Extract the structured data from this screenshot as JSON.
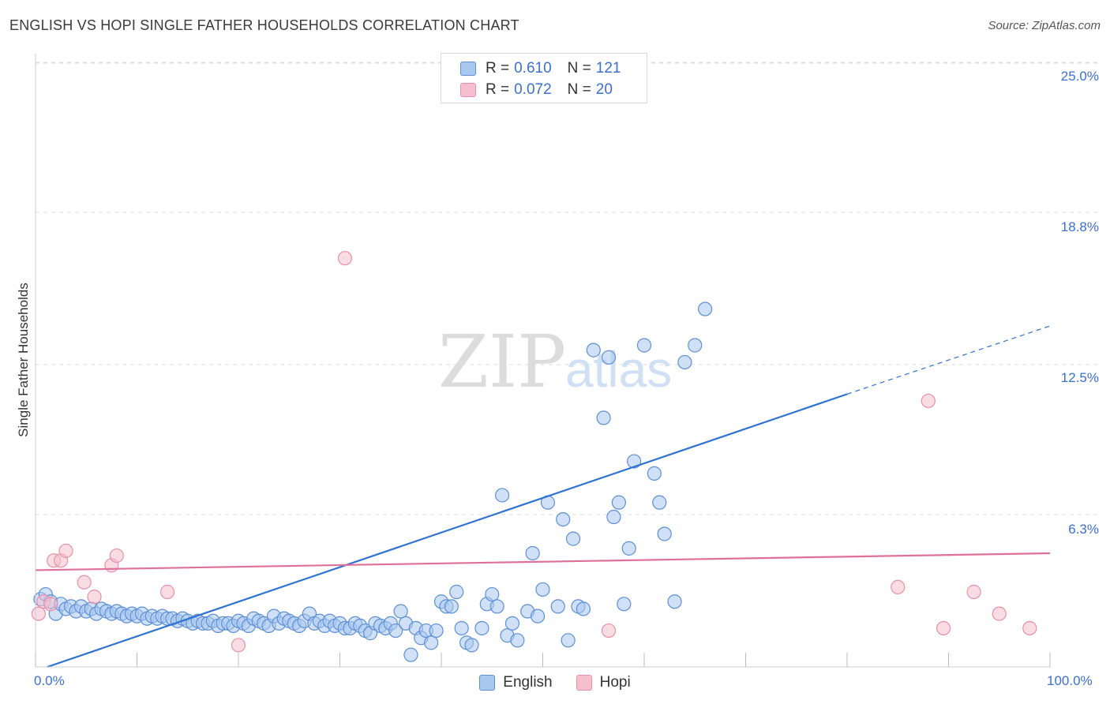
{
  "header": {
    "title": "ENGLISH VS HOPI SINGLE FATHER HOUSEHOLDS CORRELATION CHART",
    "source": "Source: ZipAtlas.com"
  },
  "watermark": {
    "zip": "ZIP",
    "atlas": "atlas"
  },
  "colors": {
    "english_fill": "#a9c8f0",
    "english_stroke": "#5d8fd6",
    "english_line": "#2e72d2",
    "hopi_fill": "#f6bfd0",
    "hopi_stroke": "#e88fab",
    "hopi_line": "#e0709a",
    "tick_text": "#3b6fd0",
    "grid": "#dddddd"
  },
  "legend": {
    "rows": [
      {
        "series": "English",
        "r_label": "R =",
        "r_value": "0.610",
        "n_label": "N =",
        "n_value": "121"
      },
      {
        "series": "Hopi",
        "r_label": "R =",
        "r_value": "0.072",
        "n_label": "N =",
        "n_value": "20"
      }
    ]
  },
  "chart_data": {
    "type": "scatter",
    "title": "ENGLISH VS HOPI SINGLE FATHER HOUSEHOLDS CORRELATION CHART",
    "xlabel": "",
    "ylabel": "Single Father Households",
    "xlim": [
      0,
      100
    ],
    "ylim": [
      0,
      25
    ],
    "x_tick_labels": [
      "0.0%",
      "100.0%"
    ],
    "y_ticks": [
      6.3,
      12.5,
      18.8,
      25.0
    ],
    "y_tick_labels": [
      "6.3%",
      "12.5%",
      "18.8%",
      "25.0%"
    ],
    "grid": true,
    "legend_position": "top-center",
    "series": [
      {
        "name": "English",
        "r": 0.61,
        "n": 121,
        "trend": {
          "x0": 0,
          "y0": 0.0,
          "x1": 100,
          "y1": 14.1,
          "solid_until_x": 80
        },
        "points": [
          [
            0.5,
            2.8
          ],
          [
            1,
            3.0
          ],
          [
            1.5,
            2.7
          ],
          [
            2,
            2.2
          ],
          [
            2.5,
            2.6
          ],
          [
            3,
            2.4
          ],
          [
            3.5,
            2.5
          ],
          [
            4,
            2.3
          ],
          [
            4.5,
            2.5
          ],
          [
            5,
            2.3
          ],
          [
            5.5,
            2.4
          ],
          [
            6,
            2.2
          ],
          [
            6.5,
            2.4
          ],
          [
            7,
            2.3
          ],
          [
            7.5,
            2.2
          ],
          [
            8,
            2.3
          ],
          [
            8.5,
            2.2
          ],
          [
            9,
            2.1
          ],
          [
            9.5,
            2.2
          ],
          [
            10,
            2.1
          ],
          [
            10.5,
            2.2
          ],
          [
            11,
            2.0
          ],
          [
            11.5,
            2.1
          ],
          [
            12,
            2.0
          ],
          [
            12.5,
            2.1
          ],
          [
            13,
            2.0
          ],
          [
            13.5,
            2.0
          ],
          [
            14,
            1.9
          ],
          [
            14.5,
            2.0
          ],
          [
            15,
            1.9
          ],
          [
            15.5,
            1.8
          ],
          [
            16,
            1.9
          ],
          [
            16.5,
            1.8
          ],
          [
            17,
            1.8
          ],
          [
            17.5,
            1.9
          ],
          [
            18,
            1.7
          ],
          [
            18.5,
            1.8
          ],
          [
            19,
            1.8
          ],
          [
            19.5,
            1.7
          ],
          [
            20,
            1.9
          ],
          [
            20.5,
            1.8
          ],
          [
            21,
            1.7
          ],
          [
            21.5,
            2.0
          ],
          [
            22,
            1.9
          ],
          [
            22.5,
            1.8
          ],
          [
            23,
            1.7
          ],
          [
            23.5,
            2.1
          ],
          [
            24,
            1.8
          ],
          [
            24.5,
            2.0
          ],
          [
            25,
            1.9
          ],
          [
            25.5,
            1.8
          ],
          [
            26,
            1.7
          ],
          [
            26.5,
            1.9
          ],
          [
            27,
            2.2
          ],
          [
            27.5,
            1.8
          ],
          [
            28,
            1.9
          ],
          [
            28.5,
            1.7
          ],
          [
            29,
            1.9
          ],
          [
            29.5,
            1.7
          ],
          [
            30,
            1.8
          ],
          [
            30.5,
            1.6
          ],
          [
            31,
            1.6
          ],
          [
            31.5,
            1.8
          ],
          [
            32,
            1.7
          ],
          [
            32.5,
            1.5
          ],
          [
            33,
            1.4
          ],
          [
            33.5,
            1.8
          ],
          [
            34,
            1.7
          ],
          [
            34.5,
            1.6
          ],
          [
            35,
            1.8
          ],
          [
            35.5,
            1.5
          ],
          [
            36,
            2.3
          ],
          [
            36.5,
            1.8
          ],
          [
            37,
            0.5
          ],
          [
            37.5,
            1.6
          ],
          [
            38,
            1.2
          ],
          [
            38.5,
            1.5
          ],
          [
            39,
            1.0
          ],
          [
            39.5,
            1.5
          ],
          [
            40,
            2.7
          ],
          [
            40.5,
            2.5
          ],
          [
            41,
            2.5
          ],
          [
            41.5,
            3.1
          ],
          [
            42,
            1.6
          ],
          [
            42.5,
            1.0
          ],
          [
            43,
            0.9
          ],
          [
            44,
            1.6
          ],
          [
            44.5,
            2.6
          ],
          [
            45,
            3.0
          ],
          [
            45.5,
            2.5
          ],
          [
            46,
            7.1
          ],
          [
            46.5,
            1.3
          ],
          [
            47,
            1.8
          ],
          [
            47.5,
            1.1
          ],
          [
            48.5,
            2.3
          ],
          [
            49,
            4.7
          ],
          [
            49.5,
            2.1
          ],
          [
            50,
            3.2
          ],
          [
            50.5,
            6.8
          ],
          [
            51.5,
            2.5
          ],
          [
            52,
            6.1
          ],
          [
            52.5,
            1.1
          ],
          [
            53,
            5.3
          ],
          [
            53.5,
            2.5
          ],
          [
            54,
            2.4
          ],
          [
            55,
            13.1
          ],
          [
            56,
            10.3
          ],
          [
            56.5,
            12.8
          ],
          [
            57,
            6.2
          ],
          [
            57.5,
            6.8
          ],
          [
            58,
            2.6
          ],
          [
            58.5,
            4.9
          ],
          [
            59,
            8.5
          ],
          [
            60,
            13.3
          ],
          [
            61,
            8.0
          ],
          [
            61.5,
            6.8
          ],
          [
            62,
            5.5
          ],
          [
            63,
            2.7
          ],
          [
            64,
            12.6
          ],
          [
            65,
            13.3
          ],
          [
            66,
            14.8
          ]
        ]
      },
      {
        "name": "Hopi",
        "r": 0.072,
        "n": 20,
        "trend": {
          "x0": 0,
          "y0": 4.0,
          "x1": 100,
          "y1": 4.7
        },
        "points": [
          [
            0.3,
            2.2
          ],
          [
            0.8,
            2.7
          ],
          [
            1.5,
            2.6
          ],
          [
            1.8,
            4.4
          ],
          [
            2.5,
            4.4
          ],
          [
            3,
            4.8
          ],
          [
            4.8,
            3.5
          ],
          [
            5.8,
            2.9
          ],
          [
            7.5,
            4.2
          ],
          [
            8,
            4.6
          ],
          [
            13,
            3.1
          ],
          [
            20,
            0.9
          ],
          [
            30.5,
            16.9
          ],
          [
            56.5,
            1.5
          ],
          [
            85,
            3.3
          ],
          [
            88,
            11.0
          ],
          [
            89.5,
            1.6
          ],
          [
            92.5,
            3.1
          ],
          [
            95,
            2.2
          ],
          [
            98,
            1.6
          ]
        ]
      }
    ]
  }
}
